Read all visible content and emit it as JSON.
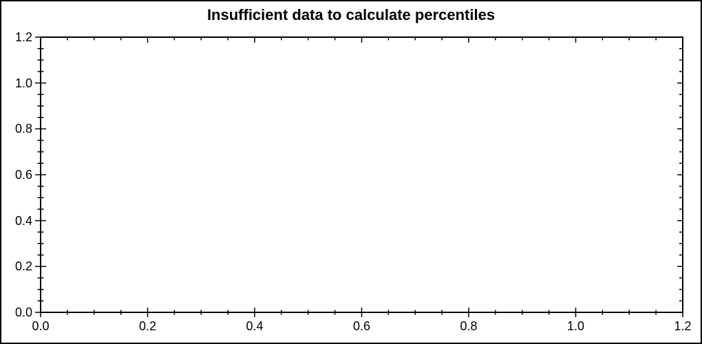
{
  "figure": {
    "background": "#ffffff",
    "border_color": "#000000"
  },
  "chart_data": {
    "type": "scatter",
    "title": "Insufficient data to calculate percentiles",
    "series": [],
    "xlabel": "",
    "ylabel": "",
    "xlim": [
      0.0,
      1.2
    ],
    "ylim": [
      0.0,
      1.2
    ],
    "x_major_ticks": [
      0.0,
      0.2,
      0.4,
      0.6,
      0.8,
      1.0,
      1.2
    ],
    "y_major_ticks": [
      0.0,
      0.2,
      0.4,
      0.6,
      0.8,
      1.0,
      1.2
    ],
    "x_tick_labels": [
      "0.0",
      "0.2",
      "0.4",
      "0.6",
      "0.8",
      "1.0",
      "1.2"
    ],
    "y_tick_labels": [
      "0.0",
      "0.2",
      "0.4",
      "0.6",
      "0.8",
      "1.0",
      "1.2"
    ],
    "minor_tick_step": 0.05,
    "grid": false,
    "legend": false,
    "axis_color": "#000000",
    "title_color": "#000000",
    "frame": "closed-box"
  }
}
